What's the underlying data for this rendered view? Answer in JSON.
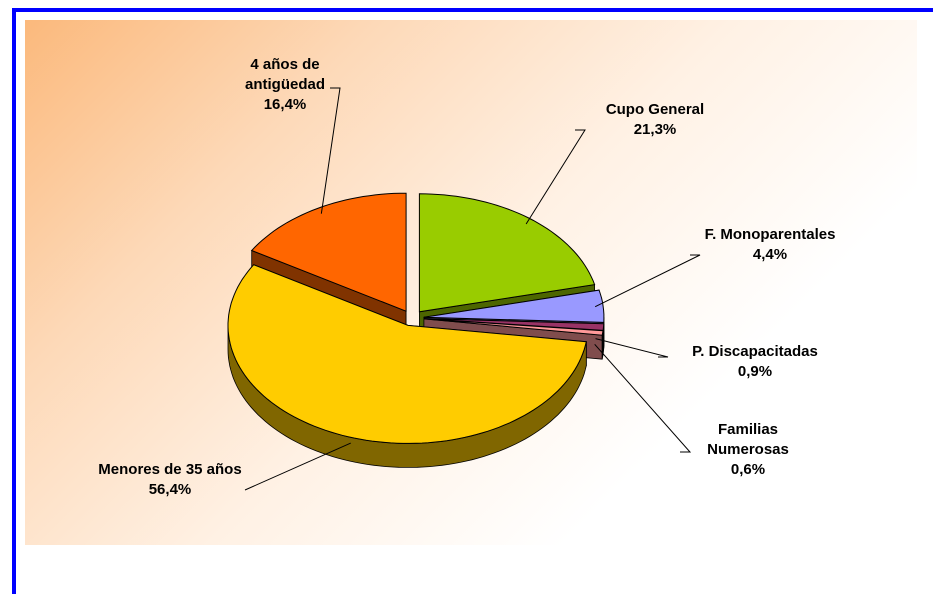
{
  "chart_data": {
    "type": "pie",
    "categories": [
      "Cupo General",
      "F. Monoparentales",
      "P. Discapacitadas",
      "Familias Numerosas",
      "Menores de 35 años",
      "4 años de antigüedad"
    ],
    "values": [
      21.3,
      4.4,
      0.9,
      0.6,
      56.4,
      16.4
    ],
    "value_labels": [
      "21,3%",
      "4,4%",
      "0,9%",
      "0,6%",
      "56,4%",
      "16,4%"
    ],
    "colors": [
      "#99cc00",
      "#9999ff",
      "#993366",
      "#ff9999",
      "#ffcc00",
      "#ff6600"
    ]
  }
}
